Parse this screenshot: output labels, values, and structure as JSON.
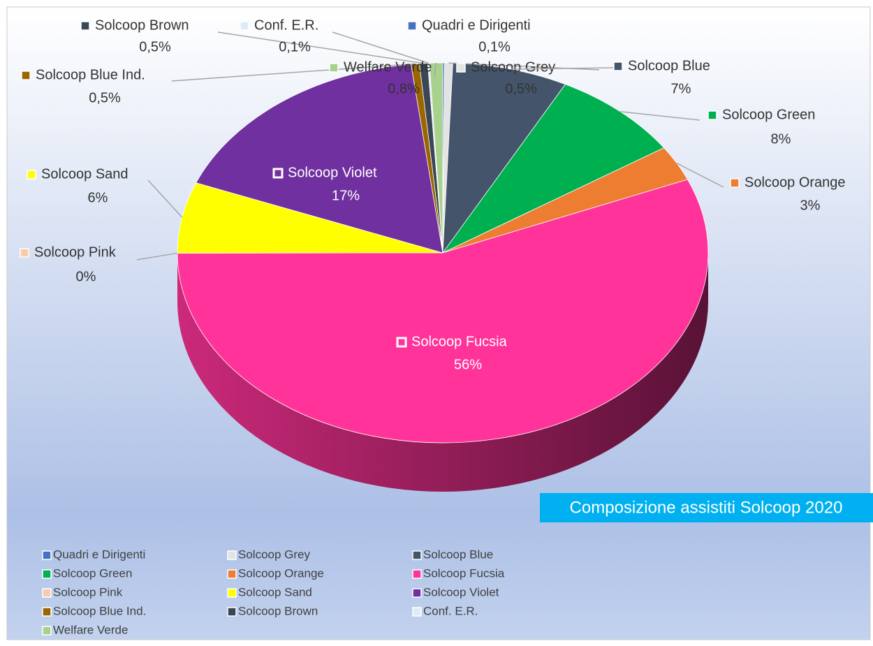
{
  "chart_data": {
    "type": "pie",
    "title": "Composizione assistiti Solcoop 2020",
    "categories": [
      "Quadri e Dirigenti",
      "Solcoop Grey",
      "Solcoop Blue",
      "Solcoop Green",
      "Solcoop Orange",
      "Solcoop Fucsia",
      "Solcoop Pink",
      "Solcoop Sand",
      "Solcoop Violet",
      "Solcoop Blue Ind.",
      "Solcoop Brown",
      "Conf. E.R.",
      "Welfare Verde"
    ],
    "values": [
      0.1,
      0.5,
      7,
      8,
      3,
      56,
      0,
      6,
      17,
      0.5,
      0.5,
      0.1,
      0.8
    ],
    "value_labels": [
      "0,1%",
      "0,5%",
      "7%",
      "8%",
      "3%",
      "56%",
      "0%",
      "6%",
      "17%",
      "0,5%",
      "0,5%",
      "0,1%",
      "0,8%"
    ],
    "colors": [
      "#4472c4",
      "#e3e3e3",
      "#44546a",
      "#00b050",
      "#ed7d31",
      "#ff3399",
      "#f8cbad",
      "#ffff00",
      "#7030a0",
      "#996600",
      "#3b4656",
      "#deebf7",
      "#a9d18e"
    ],
    "legend": "bottom"
  }
}
